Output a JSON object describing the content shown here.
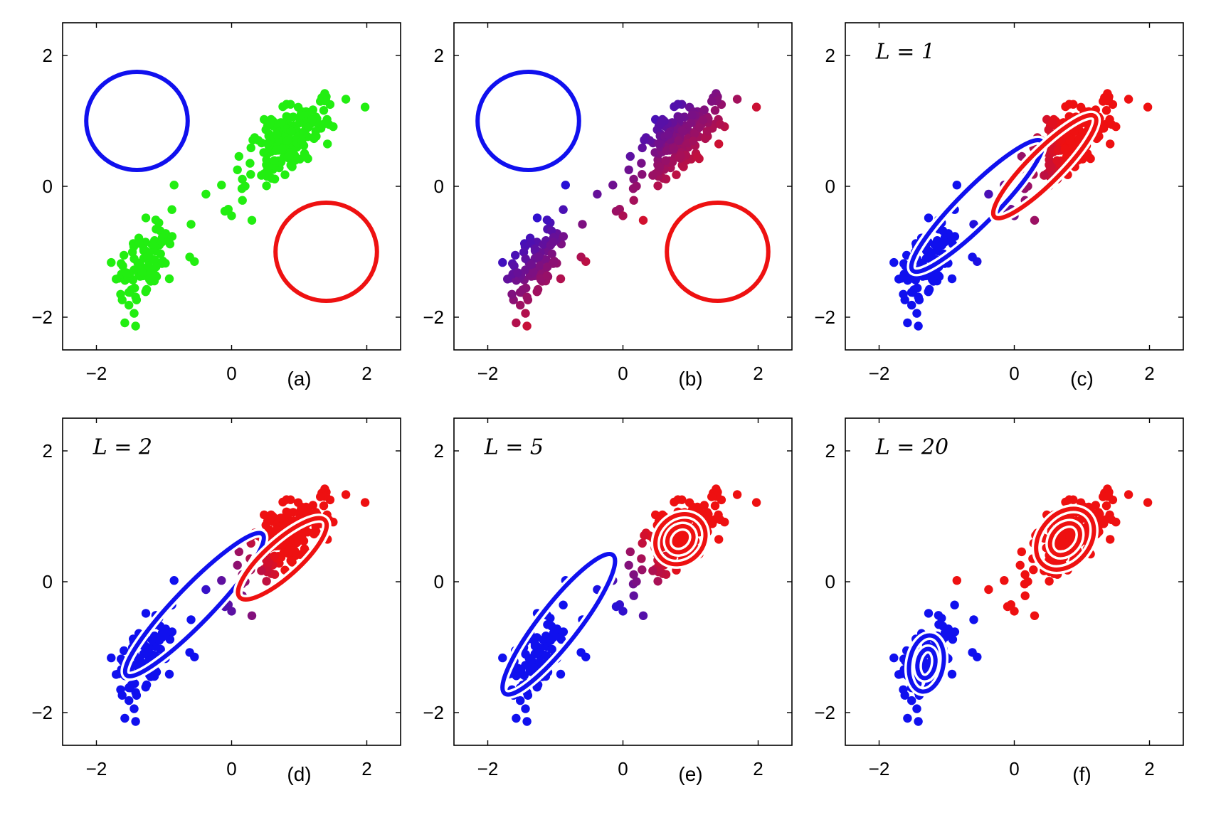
{
  "figure": {
    "panels": [
      "(a)",
      "(b)",
      "(c)",
      "(d)",
      "(e)",
      "(f)"
    ]
  },
  "colors": {
    "green": "#22ee11",
    "blue": "#1010ee",
    "red": "#ee1111",
    "frame": "#000000"
  },
  "chart_data": [
    {
      "type": "scatter",
      "panel": "(a)",
      "annotation": "",
      "xlim": [
        -2.5,
        2.5
      ],
      "ylim": [
        -2.5,
        2.5
      ],
      "xticks": [
        -2,
        0,
        2
      ],
      "yticks": [
        -2,
        0,
        2
      ],
      "xtick_labels": [
        "−2",
        "0",
        "2"
      ],
      "ytick_labels": [
        "−2",
        "0",
        "2"
      ],
      "point_coloring": "uniform-green",
      "contours": [
        {
          "name": "blue-component",
          "color": "blue",
          "center": [
            -1.4,
            1.0
          ],
          "axes": [
            0.75,
            0.75
          ],
          "angle_deg": 0,
          "rings": 1
        },
        {
          "name": "red-component",
          "color": "red",
          "center": [
            1.4,
            -1.0
          ],
          "axes": [
            0.75,
            0.75
          ],
          "angle_deg": 0,
          "rings": 1
        }
      ]
    },
    {
      "type": "scatter",
      "panel": "(b)",
      "annotation": "",
      "xlim": [
        -2.5,
        2.5
      ],
      "ylim": [
        -2.5,
        2.5
      ],
      "xticks": [
        -2,
        0,
        2
      ],
      "yticks": [
        -2,
        0,
        2
      ],
      "xtick_labels": [
        "−2",
        "0",
        "2"
      ],
      "ytick_labels": [
        "−2",
        "0",
        "2"
      ],
      "point_coloring": "responsibility-initial",
      "contours": [
        {
          "name": "blue-component",
          "color": "blue",
          "center": [
            -1.4,
            1.0
          ],
          "axes": [
            0.75,
            0.75
          ],
          "angle_deg": 0,
          "rings": 1
        },
        {
          "name": "red-component",
          "color": "red",
          "center": [
            1.4,
            -1.0
          ],
          "axes": [
            0.75,
            0.75
          ],
          "angle_deg": 0,
          "rings": 1
        }
      ]
    },
    {
      "type": "scatter",
      "panel": "(c)",
      "annotation": "L = 1",
      "xlim": [
        -2.5,
        2.5
      ],
      "ylim": [
        -2.5,
        2.5
      ],
      "xticks": [
        -2,
        0,
        2
      ],
      "yticks": [
        -2,
        0,
        2
      ],
      "xtick_labels": [
        "−2",
        "0",
        "2"
      ],
      "ytick_labels": [
        "−2",
        "0",
        "2"
      ],
      "point_coloring": "responsibility-L1",
      "contours": [
        {
          "name": "blue-component",
          "color": "blue",
          "center": [
            -0.55,
            -0.3
          ],
          "axes": [
            1.35,
            0.28
          ],
          "angle_deg": 45,
          "rings": 1
        },
        {
          "name": "red-component",
          "color": "red",
          "center": [
            0.45,
            0.3
          ],
          "axes": [
            1.05,
            0.25
          ],
          "angle_deg": 45,
          "rings": 1
        }
      ]
    },
    {
      "type": "scatter",
      "panel": "(d)",
      "annotation": "L = 2",
      "xlim": [
        -2.5,
        2.5
      ],
      "ylim": [
        -2.5,
        2.5
      ],
      "xticks": [
        -2,
        0,
        2
      ],
      "yticks": [
        -2,
        0,
        2
      ],
      "xtick_labels": [
        "−2",
        "0",
        "2"
      ],
      "ytick_labels": [
        "−2",
        "0",
        "2"
      ],
      "point_coloring": "responsibility-L2",
      "contours": [
        {
          "name": "blue-component",
          "color": "blue",
          "center": [
            -0.55,
            -0.35
          ],
          "axes": [
            1.45,
            0.28
          ],
          "angle_deg": 46,
          "rings": 1
        },
        {
          "name": "red-component",
          "color": "red",
          "center": [
            0.75,
            0.35
          ],
          "axes": [
            0.85,
            0.27
          ],
          "angle_deg": 42,
          "rings": 1
        }
      ]
    },
    {
      "type": "scatter",
      "panel": "(e)",
      "annotation": "L = 5",
      "xlim": [
        -2.5,
        2.5
      ],
      "ylim": [
        -2.5,
        2.5
      ],
      "xticks": [
        -2,
        0,
        2
      ],
      "yticks": [
        -2,
        0,
        2
      ],
      "xtick_labels": [
        "−2",
        "0",
        "2"
      ],
      "ytick_labels": [
        "−2",
        "0",
        "2"
      ],
      "point_coloring": "responsibility-L5",
      "contours": [
        {
          "name": "blue-component",
          "color": "blue",
          "center": [
            -0.95,
            -0.65
          ],
          "axes": [
            1.3,
            0.3
          ],
          "angle_deg": 52,
          "rings": 1
        },
        {
          "name": "red-component",
          "color": "red",
          "center": [
            0.85,
            0.65
          ],
          "axes": [
            0.4,
            0.35
          ],
          "angle_deg": 45,
          "rings": 2
        }
      ]
    },
    {
      "type": "scatter",
      "panel": "(f)",
      "annotation": "L = 20",
      "xlim": [
        -2.5,
        2.5
      ],
      "ylim": [
        -2.5,
        2.5
      ],
      "xticks": [
        -2,
        0,
        2
      ],
      "yticks": [
        -2,
        0,
        2
      ],
      "xtick_labels": [
        "−2",
        "0",
        "2"
      ],
      "ytick_labels": [
        "−2",
        "0",
        "2"
      ],
      "point_coloring": "responsibility-converged",
      "contours": [
        {
          "name": "blue-component",
          "color": "blue",
          "center": [
            -1.3,
            -1.25
          ],
          "axes": [
            0.42,
            0.26
          ],
          "angle_deg": 80,
          "rings": 2
        },
        {
          "name": "red-component",
          "color": "red",
          "center": [
            0.75,
            0.65
          ],
          "axes": [
            0.5,
            0.38
          ],
          "angle_deg": 50,
          "rings": 2
        }
      ]
    }
  ]
}
